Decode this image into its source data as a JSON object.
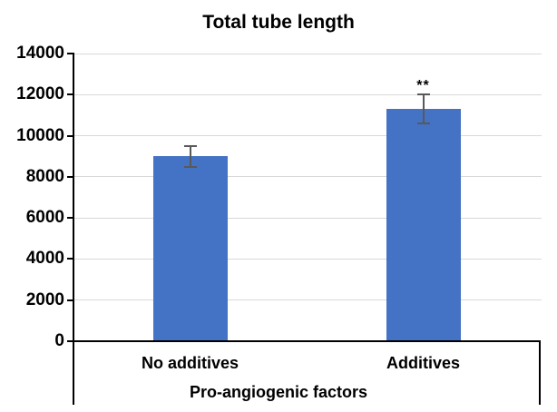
{
  "chart_data": {
    "type": "bar",
    "title": "Total tube length",
    "xlabel": "Pro-angiogenic factors",
    "ylabel": "",
    "categories": [
      "No additives",
      "Additives"
    ],
    "values": [
      9000,
      11300
    ],
    "error_bars": [
      500,
      700
    ],
    "significance": [
      "",
      "**"
    ],
    "ylim": [
      0,
      14000
    ],
    "yticks": [
      0,
      2000,
      4000,
      6000,
      8000,
      10000,
      12000,
      14000
    ],
    "grid": "horizontal",
    "legend": "none",
    "bar_color": "#4472C4",
    "error_bar_color": "#595959",
    "gridline_color": "#D9D9D9",
    "axis_color": "#000000"
  }
}
